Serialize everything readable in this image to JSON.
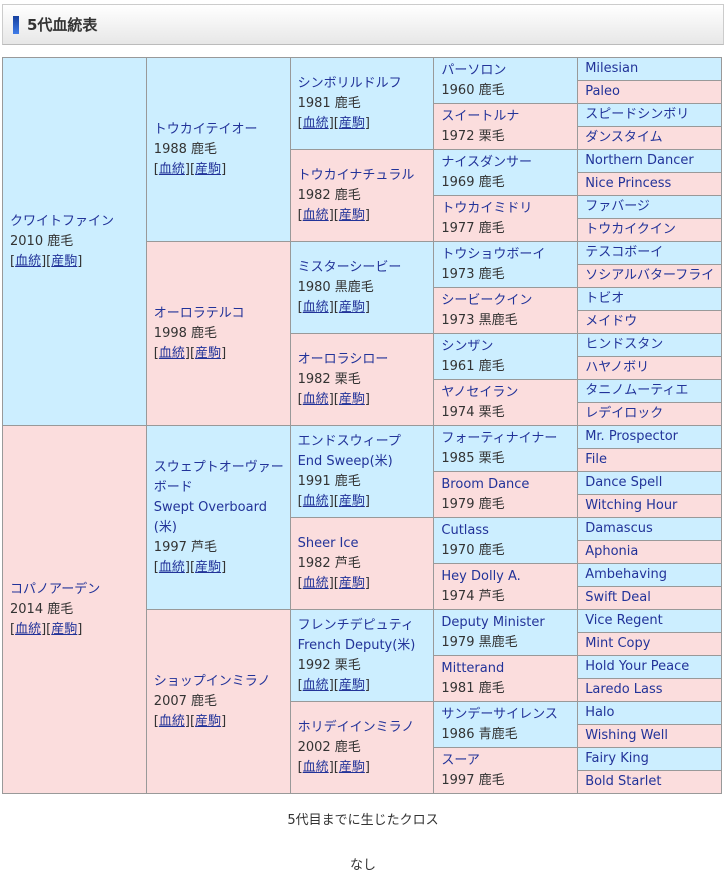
{
  "page": {
    "title": "5代血統表",
    "labels": {
      "bracket_open": "[",
      "pedigree_link": "血統",
      "bracket_mid": "][",
      "offspring_link": "産駒",
      "bracket_close": "]"
    },
    "footer": {
      "cross_heading": "5代目までに生じたクロス",
      "cross_value": "なし"
    },
    "colors": {
      "male_bg": "#cceeff",
      "female_bg": "#fbdddd",
      "border": "#999999",
      "link": "#223399",
      "text": "#333333",
      "accent_bar_top": "#16409f",
      "accent_bar_bottom": "#3f7ce8"
    }
  },
  "pedigree": {
    "generations": [
      {
        "span": 16,
        "cells": [
          {
            "sex": "m",
            "name": "クワイトファイン",
            "detail": "2010 鹿毛",
            "links": true
          },
          {
            "sex": "f",
            "name": "コパノアーデン",
            "detail": "2014 鹿毛",
            "links": true
          }
        ]
      },
      {
        "span": 8,
        "cells": [
          {
            "sex": "m",
            "name": "トウカイテイオー",
            "detail": "1988 鹿毛",
            "links": true
          },
          {
            "sex": "f",
            "name": "オーロラテルコ",
            "detail": "1998 鹿毛",
            "links": true
          },
          {
            "sex": "m",
            "name": "スウェプトオーヴァーボード",
            "foreign_name": "Swept Overboard(米)",
            "detail": "1997 芦毛",
            "links": true
          },
          {
            "sex": "f",
            "name": "ショップインミラノ",
            "detail": "2007 鹿毛",
            "links": true
          }
        ]
      },
      {
        "span": 4,
        "cells": [
          {
            "sex": "m",
            "name": "シンボリルドルフ",
            "detail": "1981 鹿毛",
            "links": true
          },
          {
            "sex": "f",
            "name": "トウカイナチュラル",
            "detail": "1982 鹿毛",
            "links": true
          },
          {
            "sex": "m",
            "name": "ミスターシービー",
            "detail": "1980 黒鹿毛",
            "links": true
          },
          {
            "sex": "f",
            "name": "オーロラシロー",
            "detail": "1982 栗毛",
            "links": true
          },
          {
            "sex": "m",
            "name": "エンドスウィープ",
            "foreign_name": "End Sweep(米)",
            "detail": "1991 鹿毛",
            "links": true
          },
          {
            "sex": "f",
            "name": "Sheer Ice",
            "detail": "1982 芦毛",
            "links": true
          },
          {
            "sex": "m",
            "name": "フレンチデピュティ",
            "foreign_name": "French Deputy(米)",
            "detail": "1992 栗毛",
            "links": true
          },
          {
            "sex": "f",
            "name": "ホリデイインミラノ",
            "detail": "2002 鹿毛",
            "links": true
          }
        ]
      },
      {
        "span": 2,
        "cells": [
          {
            "sex": "m",
            "name": "パーソロン",
            "detail": "1960 鹿毛",
            "links": false
          },
          {
            "sex": "f",
            "name": "スイートルナ",
            "detail": "1972 栗毛",
            "links": false
          },
          {
            "sex": "m",
            "name": "ナイスダンサー",
            "detail": "1969 鹿毛",
            "links": false
          },
          {
            "sex": "f",
            "name": "トウカイミドリ",
            "detail": "1977 鹿毛",
            "links": false
          },
          {
            "sex": "m",
            "name": "トウショウボーイ",
            "detail": "1973 鹿毛",
            "links": false
          },
          {
            "sex": "f",
            "name": "シービークイン",
            "detail": "1973 黒鹿毛",
            "links": false
          },
          {
            "sex": "m",
            "name": "シンザン",
            "detail": "1961 鹿毛",
            "links": false
          },
          {
            "sex": "f",
            "name": "ヤノセイラン",
            "detail": "1974 栗毛",
            "links": false
          },
          {
            "sex": "m",
            "name": "フォーティナイナー",
            "detail": "1985 栗毛",
            "links": false
          },
          {
            "sex": "f",
            "name": "Broom Dance",
            "detail": "1979 鹿毛",
            "links": false
          },
          {
            "sex": "m",
            "name": "Cutlass",
            "detail": "1970 鹿毛",
            "links": false
          },
          {
            "sex": "f",
            "name": "Hey Dolly A.",
            "detail": "1974 芦毛",
            "links": false
          },
          {
            "sex": "m",
            "name": "Deputy Minister",
            "detail": "1979 黒鹿毛",
            "links": false
          },
          {
            "sex": "f",
            "name": "Mitterand",
            "detail": "1981 鹿毛",
            "links": false
          },
          {
            "sex": "m",
            "name": "サンデーサイレンス",
            "detail": "1986 青鹿毛",
            "links": false
          },
          {
            "sex": "f",
            "name": "スーア",
            "detail": "1997 鹿毛",
            "links": false
          }
        ]
      },
      {
        "span": 1,
        "cells": [
          {
            "sex": "m",
            "name": "Milesian"
          },
          {
            "sex": "f",
            "name": "Paleo"
          },
          {
            "sex": "m",
            "name": "スピードシンボリ"
          },
          {
            "sex": "f",
            "name": "ダンスタイム"
          },
          {
            "sex": "m",
            "name": "Northern Dancer"
          },
          {
            "sex": "f",
            "name": "Nice Princess"
          },
          {
            "sex": "m",
            "name": "ファバージ"
          },
          {
            "sex": "f",
            "name": "トウカイクイン"
          },
          {
            "sex": "m",
            "name": "テスコボーイ"
          },
          {
            "sex": "f",
            "name": "ソシアルバターフライ"
          },
          {
            "sex": "m",
            "name": "トビオ"
          },
          {
            "sex": "f",
            "name": "メイドウ"
          },
          {
            "sex": "m",
            "name": "ヒンドスタン"
          },
          {
            "sex": "f",
            "name": "ハヤノボリ"
          },
          {
            "sex": "m",
            "name": "タニノムーティエ"
          },
          {
            "sex": "f",
            "name": "レデイロック"
          },
          {
            "sex": "m",
            "name": "Mr. Prospector"
          },
          {
            "sex": "f",
            "name": "File"
          },
          {
            "sex": "m",
            "name": "Dance Spell"
          },
          {
            "sex": "f",
            "name": "Witching Hour"
          },
          {
            "sex": "m",
            "name": "Damascus"
          },
          {
            "sex": "f",
            "name": "Aphonia"
          },
          {
            "sex": "m",
            "name": "Ambehaving"
          },
          {
            "sex": "f",
            "name": "Swift Deal"
          },
          {
            "sex": "m",
            "name": "Vice Regent"
          },
          {
            "sex": "f",
            "name": "Mint Copy"
          },
          {
            "sex": "m",
            "name": "Hold Your Peace"
          },
          {
            "sex": "f",
            "name": "Laredo Lass"
          },
          {
            "sex": "m",
            "name": "Halo"
          },
          {
            "sex": "f",
            "name": "Wishing Well"
          },
          {
            "sex": "m",
            "name": "Fairy King"
          },
          {
            "sex": "f",
            "name": "Bold Starlet"
          }
        ]
      }
    ]
  }
}
